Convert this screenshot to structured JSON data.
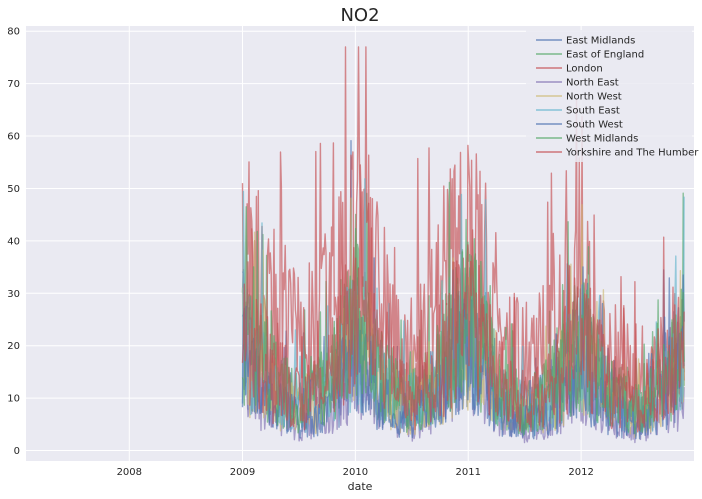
{
  "chart_data": {
    "type": "line",
    "title": "NO2",
    "xlabel": "date",
    "ylabel": "",
    "xlim": [
      "2007-02-01",
      "2012-12-31"
    ],
    "ylim": [
      -2,
      81
    ],
    "x_ticks": [
      "2008",
      "2009",
      "2010",
      "2011",
      "2012"
    ],
    "y_ticks": [
      0,
      10,
      20,
      30,
      40,
      50,
      60,
      70,
      80
    ],
    "grid": true,
    "legend_position": "top-right",
    "series": [
      {
        "name": "East Midlands",
        "color": "#4c72b0",
        "x": [
          "2009-01",
          "2009-04",
          "2009-07",
          "2009-10",
          "2010-01",
          "2010-04",
          "2010-07",
          "2010-10",
          "2011-01",
          "2011-04",
          "2011-07",
          "2011-10",
          "2012-01",
          "2012-04",
          "2012-07",
          "2012-10",
          "2012-12"
        ],
        "y": [
          20,
          12,
          8,
          10,
          22,
          12,
          8,
          13,
          24,
          11,
          7,
          10,
          19,
          10,
          7,
          12,
          17
        ]
      },
      {
        "name": "East of England",
        "color": "#55a868",
        "x": [
          "2009-01",
          "2009-04",
          "2009-07",
          "2009-10",
          "2010-01",
          "2010-04",
          "2010-07",
          "2010-10",
          "2011-01",
          "2011-04",
          "2011-07",
          "2011-10",
          "2012-01",
          "2012-04",
          "2012-07",
          "2012-10",
          "2012-12"
        ],
        "y": [
          22,
          13,
          9,
          12,
          25,
          13,
          9,
          14,
          27,
          12,
          8,
          11,
          21,
          11,
          8,
          13,
          19
        ]
      },
      {
        "name": "London",
        "color": "#c44e52",
        "x": [
          "2009-01",
          "2009-04",
          "2009-07",
          "2009-10",
          "2010-01",
          "2010-04",
          "2010-07",
          "2010-10",
          "2011-01",
          "2011-04",
          "2011-07",
          "2011-10",
          "2012-01",
          "2012-04",
          "2012-07",
          "2012-10",
          "2012-12"
        ],
        "y": [
          35,
          28,
          20,
          25,
          36,
          28,
          18,
          30,
          38,
          26,
          17,
          22,
          28,
          16,
          11,
          15,
          20
        ]
      },
      {
        "name": "North East",
        "color": "#8172b2",
        "x": [
          "2009-01",
          "2009-04",
          "2009-07",
          "2009-10",
          "2010-01",
          "2010-04",
          "2010-07",
          "2010-10",
          "2011-01",
          "2011-04",
          "2011-07",
          "2011-10",
          "2012-01",
          "2012-04",
          "2012-07",
          "2012-10",
          "2012-12"
        ],
        "y": [
          14,
          8,
          5,
          7,
          16,
          8,
          5,
          9,
          17,
          7,
          4,
          7,
          13,
          6,
          4,
          8,
          12
        ]
      },
      {
        "name": "North West",
        "color": "#ccb974",
        "x": [
          "2009-01",
          "2009-04",
          "2009-07",
          "2009-10",
          "2010-01",
          "2010-04",
          "2010-07",
          "2010-10",
          "2011-01",
          "2011-04",
          "2011-07",
          "2011-10",
          "2012-01",
          "2012-04",
          "2012-07",
          "2012-10",
          "2012-12"
        ],
        "y": [
          19,
          12,
          8,
          10,
          21,
          12,
          8,
          12,
          22,
          11,
          7,
          9,
          18,
          9,
          6,
          11,
          16
        ]
      },
      {
        "name": "South East",
        "color": "#64b5cd",
        "x": [
          "2009-01",
          "2009-04",
          "2009-07",
          "2009-10",
          "2010-01",
          "2010-04",
          "2010-07",
          "2010-10",
          "2011-01",
          "2011-04",
          "2011-07",
          "2011-10",
          "2012-01",
          "2012-04",
          "2012-07",
          "2012-10",
          "2012-12"
        ],
        "y": [
          21,
          13,
          9,
          11,
          23,
          13,
          9,
          13,
          25,
          12,
          8,
          10,
          20,
          10,
          7,
          12,
          18
        ]
      },
      {
        "name": "South West",
        "color": "#4c72b0",
        "x": [
          "2009-01",
          "2009-04",
          "2009-07",
          "2009-10",
          "2010-01",
          "2010-04",
          "2010-07",
          "2010-10",
          "2011-01",
          "2011-04",
          "2011-07",
          "2011-10",
          "2012-01",
          "2012-04",
          "2012-07",
          "2012-10",
          "2012-12"
        ],
        "y": [
          16,
          9,
          6,
          8,
          18,
          9,
          6,
          10,
          19,
          8,
          5,
          8,
          15,
          8,
          5,
          10,
          22
        ]
      },
      {
        "name": "West Midlands",
        "color": "#55a868",
        "x": [
          "2009-01",
          "2009-04",
          "2009-07",
          "2009-10",
          "2010-01",
          "2010-04",
          "2010-07",
          "2010-10",
          "2011-01",
          "2011-04",
          "2011-07",
          "2011-10",
          "2012-01",
          "2012-04",
          "2012-07",
          "2012-10",
          "2012-12"
        ],
        "y": [
          23,
          14,
          9,
          12,
          26,
          14,
          9,
          15,
          28,
          13,
          8,
          11,
          22,
          11,
          8,
          13,
          20
        ]
      },
      {
        "name": "Yorkshire and The Humber",
        "color": "#c44e52",
        "x": [
          "2009-01",
          "2009-04",
          "2009-07",
          "2009-10",
          "2010-01",
          "2010-04",
          "2010-07",
          "2010-10",
          "2011-01",
          "2011-04",
          "2011-07",
          "2011-10",
          "2012-01",
          "2012-04",
          "2012-07",
          "2012-10",
          "2012-12"
        ],
        "y": [
          24,
          15,
          10,
          13,
          27,
          15,
          10,
          16,
          29,
          14,
          9,
          12,
          23,
          12,
          9,
          14,
          21
        ]
      }
    ]
  }
}
